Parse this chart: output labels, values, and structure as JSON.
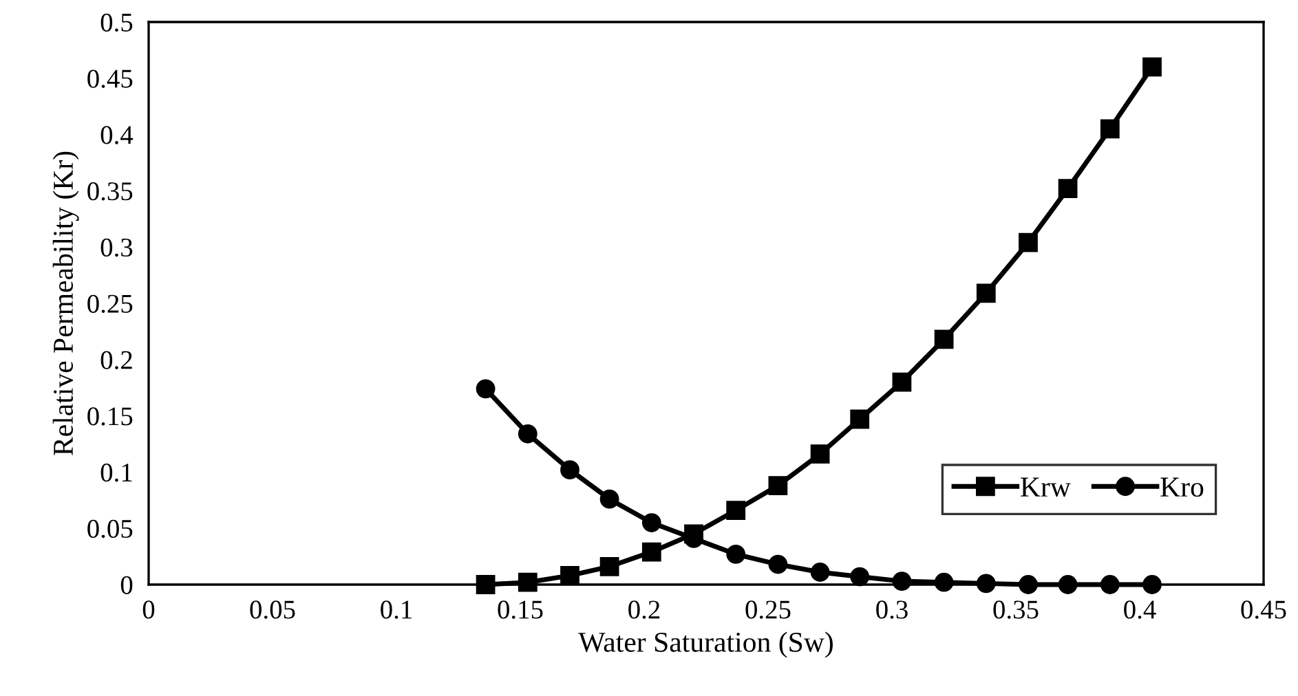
{
  "chart_data": {
    "type": "line",
    "xlabel": "Water Saturation (Sw)",
    "ylabel": "Relative Permeability (Kr)",
    "x": [
      0.136,
      0.153,
      0.17,
      0.186,
      0.203,
      0.22,
      0.237,
      0.254,
      0.271,
      0.287,
      0.304,
      0.321,
      0.338,
      0.355,
      0.371,
      0.388,
      0.405
    ],
    "series": [
      {
        "name": "Krw",
        "color": "#000000",
        "marker": "square",
        "values": [
          0,
          0.002,
          0.008,
          0.016,
          0.029,
          0.045,
          0.066,
          0.088,
          0.116,
          0.147,
          0.18,
          0.218,
          0.259,
          0.304,
          0.352,
          0.405,
          0.46
        ]
      },
      {
        "name": "Kro",
        "color": "#000000",
        "marker": "circle",
        "values": [
          0.174,
          0.134,
          0.102,
          0.076,
          0.055,
          0.041,
          0.027,
          0.018,
          0.011,
          0.007,
          0.003,
          0.002,
          0.001,
          0,
          0,
          0,
          0
        ]
      }
    ],
    "xlim": [
      0,
      0.45
    ],
    "xticks": [
      0,
      0.05,
      0.1,
      0.15,
      0.2,
      0.25,
      0.3,
      0.35,
      0.4,
      0.45
    ],
    "ylim": [
      0,
      0.5
    ],
    "yticks": [
      0,
      0.05,
      0.1,
      0.15,
      0.2,
      0.25,
      0.3,
      0.35,
      0.4,
      0.45,
      0.5
    ],
    "grid": false,
    "legend": "bottom right",
    "line_style": "solid"
  }
}
